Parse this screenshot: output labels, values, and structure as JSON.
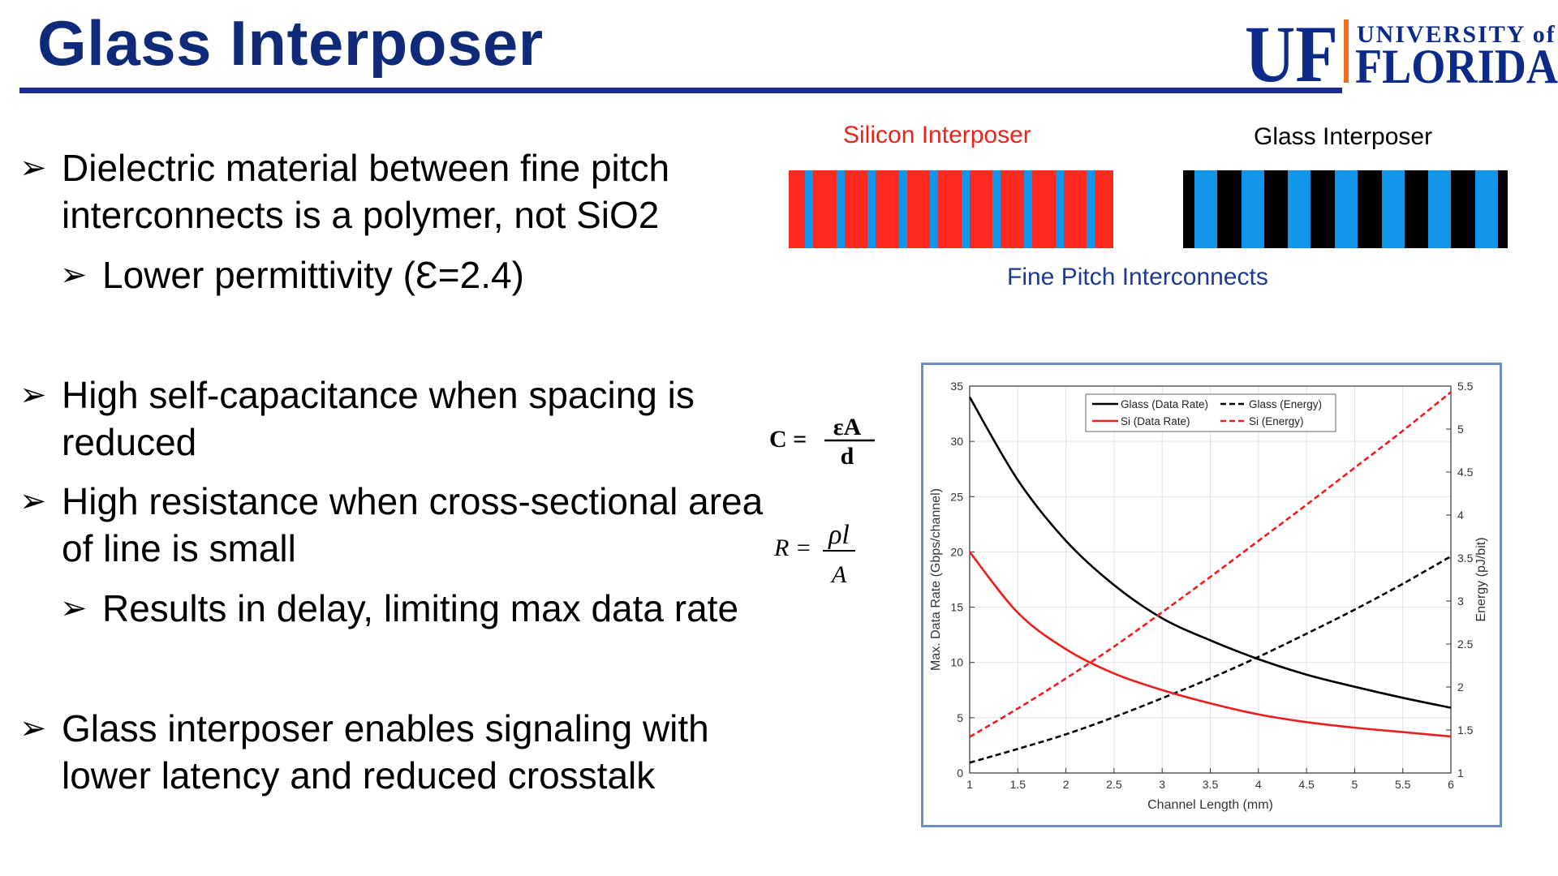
{
  "slide": {
    "title": "Glass Interposer",
    "logo": {
      "uf": "UF",
      "university_of": "UNIVERSITY of",
      "florida": "FLORIDA"
    },
    "bullets": [
      {
        "lines": [
          "Dielectric material between fine pitch",
          "interconnects is a polymer, not SiO2"
        ]
      },
      {
        "lines": [
          "Lower permittivity (Ɛ=2.4)"
        ]
      },
      {
        "lines": [
          "High self-capacitance when spacing is",
          "reduced"
        ]
      },
      {
        "lines": [
          "High resistance when cross-sectional area",
          "of line is small"
        ]
      },
      {
        "lines": [
          "Results in delay, limiting max data rate"
        ]
      },
      {
        "lines": [
          "Glass interposer enables signaling with",
          "lower latency and reduced crosstalk"
        ]
      }
    ],
    "bullet_symbol": "➢",
    "formulas": {
      "capacitance": {
        "lhs": "C =",
        "num": "εA",
        "den": "d"
      },
      "resistance": {
        "lhs": "R =",
        "num": "ρl",
        "den": "A"
      }
    },
    "diagram": {
      "silicon_label": "Silicon Interposer",
      "glass_label": "Glass Interposer",
      "caption": "Fine Pitch Interconnects",
      "colors": {
        "silicon": "#ff2a1f",
        "glass": "#000000",
        "interconnect": "#1296ea",
        "silicon_label": "#e8241b",
        "caption": "#1d3a8f"
      }
    }
  },
  "chart_data": {
    "type": "line",
    "xlabel": "Channel Length (mm)",
    "ylabel_left": "Max. Data Rate (Gbps/channel)",
    "ylabel_right": "Energy (pJ/bit)",
    "xlim": [
      1,
      6
    ],
    "ylim_left": [
      0,
      35
    ],
    "ylim_right": [
      1,
      5.5
    ],
    "x_ticks": [
      "1",
      "1.5",
      "2",
      "2.5",
      "3",
      "3.5",
      "4",
      "4.5",
      "5",
      "5.5",
      "6"
    ],
    "y_left_ticks": [
      "0",
      "5",
      "10",
      "15",
      "20",
      "25",
      "30",
      "35"
    ],
    "y_right_ticks": [
      "1",
      "1.5",
      "2",
      "2.5",
      "3",
      "3.5",
      "4",
      "4.5",
      "5",
      "5.5"
    ],
    "grid": true,
    "legend": "top",
    "x": [
      1,
      1.5,
      2,
      2.5,
      3,
      3.5,
      4,
      4.5,
      5,
      5.5,
      6
    ],
    "series": [
      {
        "name": "Glass (Data Rate)",
        "axis": "left",
        "color": "#000000",
        "dash": false,
        "values": [
          34,
          26.5,
          21,
          17,
          14,
          12,
          10.3,
          8.9,
          7.8,
          6.8,
          5.9
        ]
      },
      {
        "name": "Glass (Energy)",
        "axis": "right",
        "color": "#000000",
        "dash": true,
        "values": [
          1.12,
          1.28,
          1.45,
          1.65,
          1.87,
          2.1,
          2.35,
          2.62,
          2.9,
          3.2,
          3.52
        ]
      },
      {
        "name": "Si (Data Rate)",
        "axis": "left",
        "color": "#ee1c1c",
        "dash": false,
        "values": [
          20,
          14.5,
          11.2,
          9,
          7.5,
          6.3,
          5.3,
          4.6,
          4.1,
          3.7,
          3.3
        ]
      },
      {
        "name": "Si (Energy)",
        "axis": "right",
        "color": "#ee1c1c",
        "dash": true,
        "values": [
          1.42,
          1.75,
          2.1,
          2.47,
          2.87,
          3.28,
          3.7,
          4.12,
          4.55,
          4.98,
          5.43
        ]
      }
    ]
  }
}
